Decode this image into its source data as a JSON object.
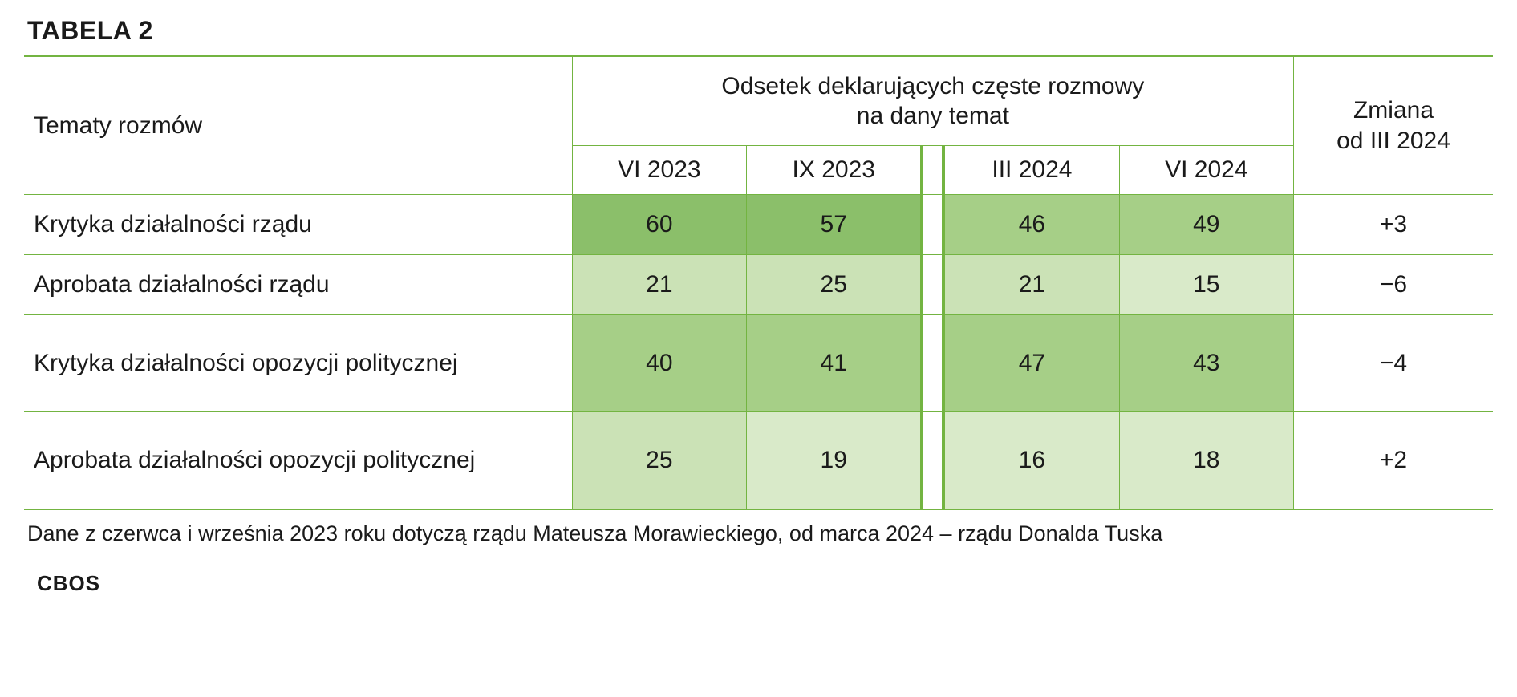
{
  "title": "TABELA 2",
  "colors": {
    "rule": "#73b441",
    "shade_dark": "#8bbf6a",
    "shade_mid": "#a6cf87",
    "shade_light": "#cbe2b6",
    "shade_pale": "#d9eac9",
    "text": "#1a1a1a",
    "background": "#ffffff"
  },
  "header": {
    "row_label": "Tematy rozmów",
    "span_label_line1": "Odsetek deklarujących częste rozmowy",
    "span_label_line2": "na dany temat",
    "change_line1": "Zmiana",
    "change_line2": "od III 2024",
    "periods_left": [
      "VI 2023",
      "IX 2023"
    ],
    "periods_right": [
      "III 2024",
      "VI 2024"
    ]
  },
  "rows": [
    {
      "label": "Krytyka działalności rządu",
      "tall": false,
      "left": [
        {
          "v": "60",
          "shade": "shade_dark"
        },
        {
          "v": "57",
          "shade": "shade_dark"
        }
      ],
      "right": [
        {
          "v": "46",
          "shade": "shade_mid"
        },
        {
          "v": "49",
          "shade": "shade_mid"
        }
      ],
      "change": "+3"
    },
    {
      "label": "Aprobata działalności rządu",
      "tall": false,
      "left": [
        {
          "v": "21",
          "shade": "shade_light"
        },
        {
          "v": "25",
          "shade": "shade_light"
        }
      ],
      "right": [
        {
          "v": "21",
          "shade": "shade_light"
        },
        {
          "v": "15",
          "shade": "shade_pale"
        }
      ],
      "change": "−6"
    },
    {
      "label": "Krytyka działalności opozycji politycznej",
      "tall": true,
      "left": [
        {
          "v": "40",
          "shade": "shade_mid"
        },
        {
          "v": "41",
          "shade": "shade_mid"
        }
      ],
      "right": [
        {
          "v": "47",
          "shade": "shade_mid"
        },
        {
          "v": "43",
          "shade": "shade_mid"
        }
      ],
      "change": "−4"
    },
    {
      "label": "Aprobata działalności opozycji politycznej",
      "tall": true,
      "left": [
        {
          "v": "25",
          "shade": "shade_light"
        },
        {
          "v": "19",
          "shade": "shade_pale"
        }
      ],
      "right": [
        {
          "v": "16",
          "shade": "shade_pale"
        },
        {
          "v": "18",
          "shade": "shade_pale"
        }
      ],
      "change": "+2"
    }
  ],
  "footnote": "Dane z czerwca i września 2023 roku dotyczą rządu Mateusza Morawieckiego, od marca 2024 – rządu Donalda Tuska",
  "source": "CBOS"
}
